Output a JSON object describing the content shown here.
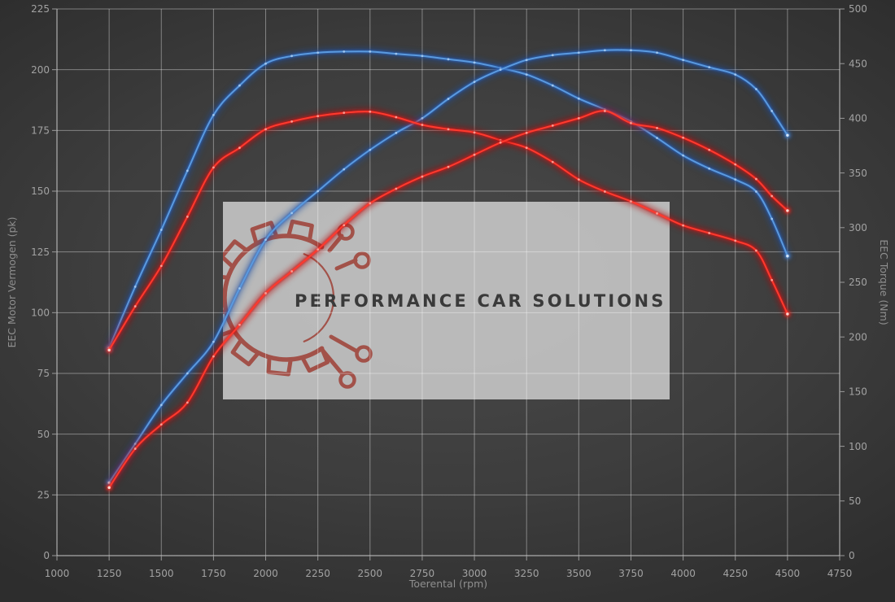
{
  "watermark": {
    "text": "PERFORMANCE CAR SOLUTIONS"
  },
  "axes": {
    "x": {
      "title": "Toerental (rpm)",
      "min": 1000,
      "max": 4750,
      "ticks": [
        1000,
        1250,
        1500,
        1750,
        2000,
        2250,
        2500,
        2750,
        3000,
        3250,
        3500,
        3750,
        4000,
        4250,
        4500,
        4750
      ]
    },
    "y_left": {
      "title": "EEC Motor Vermogen (pk)",
      "min": 0,
      "max": 225,
      "ticks": [
        0,
        25,
        50,
        75,
        100,
        125,
        150,
        175,
        200,
        225
      ]
    },
    "y_right": {
      "title": "EEC Torque (Nm)",
      "min": 0,
      "max": 500,
      "ticks": [
        0,
        50,
        100,
        150,
        200,
        250,
        300,
        350,
        400,
        450,
        500
      ]
    }
  },
  "colors": {
    "blue": "#4a8fd8",
    "red": "#ea1c1c",
    "grid": "rgba(255,255,255,0.38)",
    "frame": "rgba(255,255,255,0.55)",
    "tick_text": "#a2a2a2",
    "axis_title": "#8f8f8f",
    "watermark_box": "rgba(199,199,199,0.9)",
    "watermark_logo": "#9e4036",
    "watermark_text_color": "#3a3a3a"
  },
  "chart_data": {
    "type": "line",
    "x_unit": "rpm",
    "grid": true,
    "legend": "none",
    "rpm": [
      1250,
      1375,
      1500,
      1625,
      1750,
      1875,
      2000,
      2125,
      2250,
      2375,
      2500,
      2625,
      2750,
      2875,
      3000,
      3125,
      3250,
      3375,
      3500,
      3625,
      3750,
      3875,
      4000,
      4125,
      4250,
      4350,
      4425,
      4500
    ],
    "series": [
      {
        "name": "blue-torque",
        "axis": "right",
        "unit": "Nm",
        "color": "blue",
        "values": [
          190,
          246,
          298,
          352,
          403,
          430,
          450,
          457,
          460,
          461,
          461,
          459,
          457,
          454,
          451,
          446,
          440,
          430,
          418,
          408,
          397,
          382,
          366,
          354,
          344,
          333,
          308,
          274
        ]
      },
      {
        "name": "blue-power",
        "axis": "left",
        "unit": "pk",
        "color": "blue",
        "values": [
          30,
          46,
          62,
          75,
          88,
          110,
          130,
          141,
          150,
          159,
          167,
          174,
          180,
          188,
          195,
          200,
          204,
          206,
          207,
          208,
          208,
          207,
          204,
          201,
          198,
          192,
          183,
          173
        ]
      },
      {
        "name": "red-torque",
        "axis": "right",
        "unit": "Nm",
        "color": "red",
        "values": [
          188,
          228,
          265,
          310,
          355,
          373,
          390,
          397,
          402,
          405,
          406,
          401,
          394,
          390,
          387,
          380,
          373,
          360,
          344,
          333,
          324,
          313,
          302,
          295,
          288,
          279,
          252,
          221
        ]
      },
      {
        "name": "red-power",
        "axis": "left",
        "unit": "pk",
        "color": "red",
        "values": [
          28,
          44,
          54,
          63,
          82,
          95,
          108,
          117,
          126,
          136,
          145,
          151,
          156,
          160,
          165,
          170,
          174,
          177,
          180,
          183,
          178,
          176,
          172,
          167,
          161,
          155,
          148,
          142
        ]
      }
    ]
  }
}
